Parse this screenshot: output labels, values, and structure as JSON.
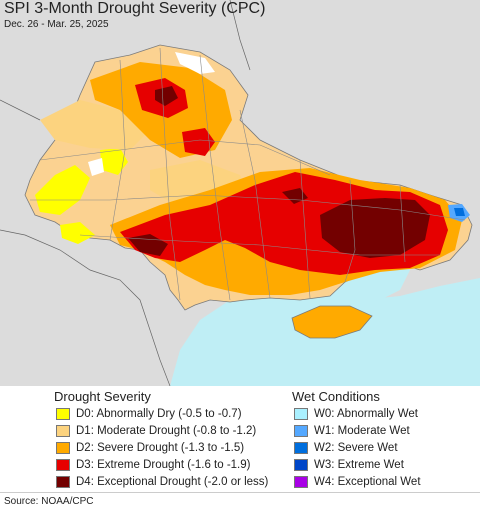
{
  "title": "SPI 3-Month Drought Severity (CPC)",
  "date_range": "Dec. 26 - Mar. 25, 2025",
  "colors": {
    "land_outside": "#dcdcdc",
    "land_base": "#fbd291",
    "sea": "#bfeef5",
    "border": "#7a7a7a",
    "D0": "#ffff00",
    "D1": "#fcd37f",
    "D2": "#ffaa00",
    "D3": "#e60000",
    "D4": "#730000",
    "W0": "#aaf0ff",
    "W1": "#54a8ff",
    "W2": "#006edd",
    "W3": "#0046c8",
    "W4": "#a800e6"
  },
  "legend": {
    "drought_heading": "Drought Severity",
    "wet_heading": "Wet Conditions",
    "drought_items": [
      {
        "label": "D0: Abnormally Dry (-0.5 to -0.7)",
        "color": "#ffff00"
      },
      {
        "label": "D1: Moderate Drought (-0.8 to -1.2)",
        "color": "#fcd37f"
      },
      {
        "label": "D2: Severe Drought (-1.3 to -1.5)",
        "color": "#ffaa00"
      },
      {
        "label": "D3: Extreme Drought (-1.6 to -1.9)",
        "color": "#e60000"
      },
      {
        "label": "D4: Exceptional Drought (-2.0 or less)",
        "color": "#730000"
      }
    ],
    "wet_items": [
      {
        "label": "W0: Abnormally Wet",
        "color": "#aaf0ff"
      },
      {
        "label": "W1: Moderate Wet",
        "color": "#54a8ff"
      },
      {
        "label": "W2: Severe Wet",
        "color": "#006edd"
      },
      {
        "label": "W3: Extreme Wet",
        "color": "#0046c8"
      },
      {
        "label": "W4: Exceptional Wet",
        "color": "#a800e6"
      }
    ]
  },
  "source": "Source: NOAA/CPC"
}
